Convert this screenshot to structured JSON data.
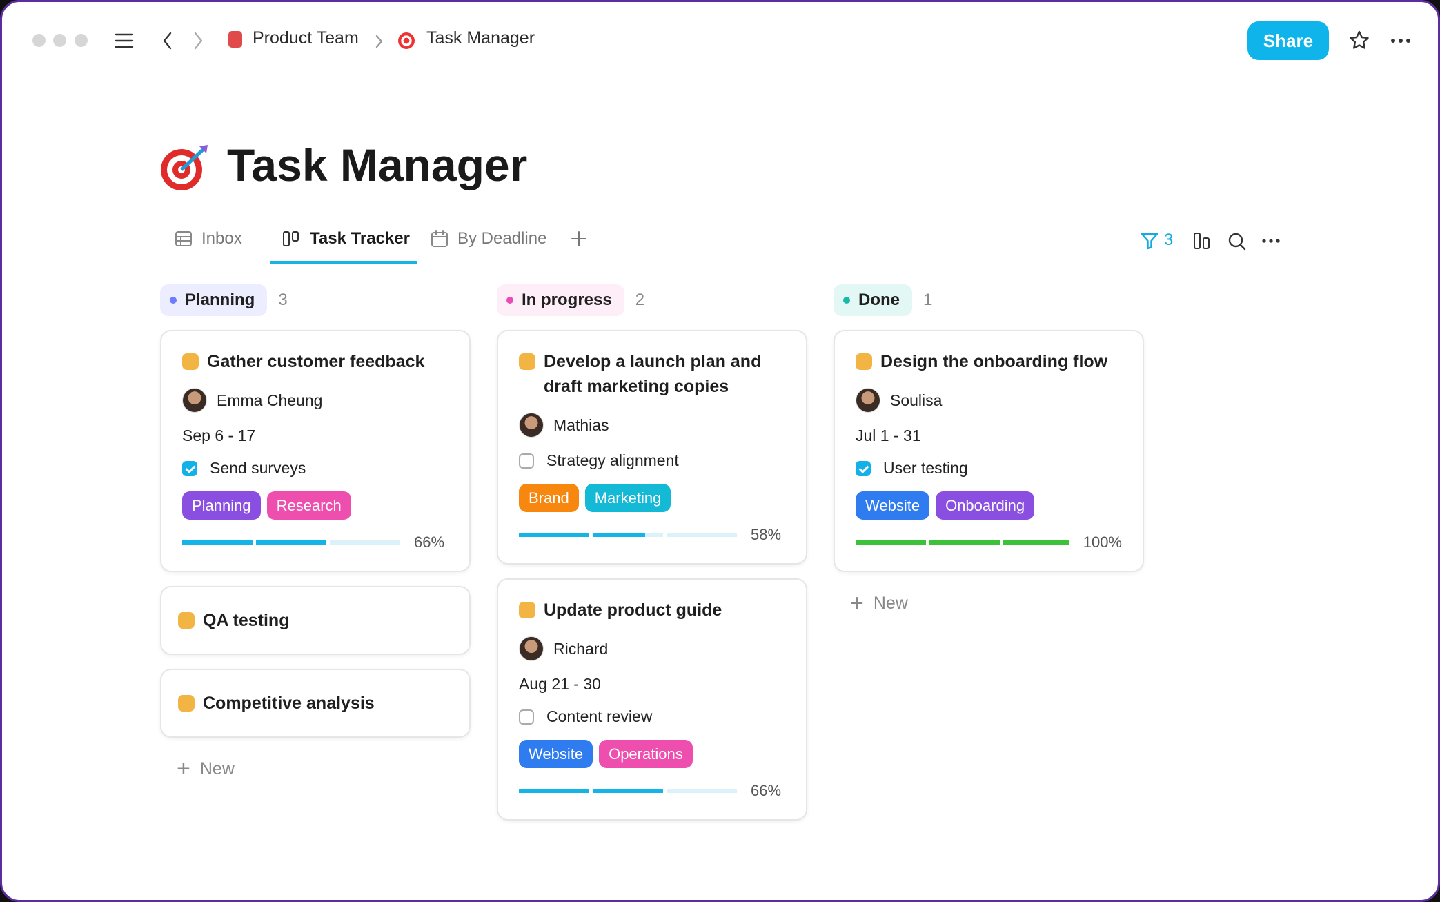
{
  "header": {
    "breadcrumbs": [
      "Product Team",
      "Task Manager"
    ],
    "share": "Share"
  },
  "page": {
    "title": "Task Manager"
  },
  "tabs": [
    "Inbox",
    "Task Tracker",
    "By Deadline"
  ],
  "active_tab": 1,
  "filter_count": 3,
  "new_label": "New",
  "columns": [
    {
      "name": "Planning",
      "count": 3,
      "dot": "#6b7cff",
      "bg": "#eceeff",
      "cards": [
        {
          "title": "Gather customer feedback",
          "assignee": "Emma Cheung",
          "dates": "Sep 6 - 17",
          "checklist": {
            "text": "Send surveys",
            "done": true
          },
          "tags": [
            {
              "label": "Planning",
              "color": "#8a4fe0"
            },
            {
              "label": "Research",
              "color": "#ee4fae"
            }
          ],
          "progress": {
            "value": 66,
            "label": "66%"
          },
          "bar_color": "#14b4e6"
        },
        {
          "title": "QA testing"
        },
        {
          "title": "Competitive analysis"
        }
      ]
    },
    {
      "name": "In progress",
      "count": 2,
      "dot": "#ec4bb5",
      "bg": "#fdeef8",
      "cards": [
        {
          "title": "Develop a launch plan and draft marketing copies",
          "assignee": "Mathias",
          "checklist": {
            "text": "Strategy alignment",
            "done": false
          },
          "tags": [
            {
              "label": "Brand",
              "color": "#f7870f"
            },
            {
              "label": "Marketing",
              "color": "#14b9d6"
            }
          ],
          "progress": {
            "value": 58,
            "label": "58%"
          },
          "bar_color": "#14b4e6"
        },
        {
          "title": "Update product guide",
          "assignee": "Richard",
          "dates": "Aug 21 - 30",
          "checklist": {
            "text": "Content review",
            "done": false
          },
          "tags": [
            {
              "label": "Website",
              "color": "#2f7cf0"
            },
            {
              "label": "Operations",
              "color": "#ee4fae"
            }
          ],
          "progress": {
            "value": 66,
            "label": "66%"
          },
          "bar_color": "#14b4e6"
        }
      ]
    },
    {
      "name": "Done",
      "count": 1,
      "dot": "#19b9a8",
      "bg": "#e3f7f4",
      "cards": [
        {
          "title": "Design the onboarding flow",
          "assignee": "Soulisa",
          "dates": "Jul 1 - 31",
          "checklist": {
            "text": "User testing",
            "done": true
          },
          "tags": [
            {
              "label": "Website",
              "color": "#2f7cf0"
            },
            {
              "label": "Onboarding",
              "color": "#8a4fe0"
            }
          ],
          "progress": {
            "value": 100,
            "label": "100%"
          },
          "bar_color": "#3cc13b"
        }
      ]
    }
  ]
}
